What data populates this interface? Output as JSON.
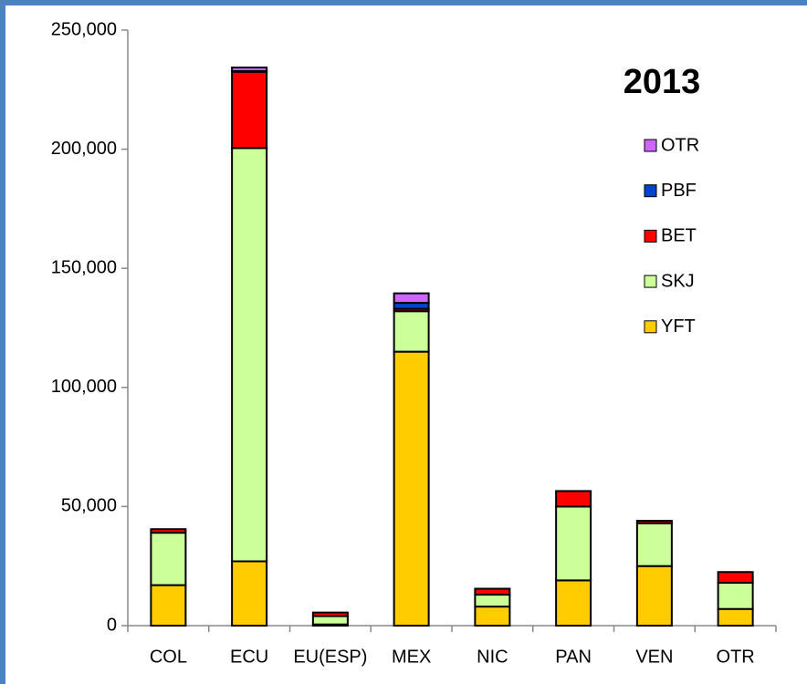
{
  "chart_data": {
    "type": "stacked_bar",
    "title": "2013",
    "categories": [
      "COL",
      "ECU",
      "EU(ESP)",
      "MEX",
      "NIC",
      "PAN",
      "VEN",
      "OTR"
    ],
    "series": [
      {
        "name": "YFT",
        "color": "#ffcc00",
        "values": [
          17000,
          27000,
          500,
          115000,
          8000,
          19000,
          25000,
          7000
        ]
      },
      {
        "name": "SKJ",
        "color": "#ccff99",
        "values": [
          22000,
          173500,
          3500,
          17000,
          5000,
          31000,
          18000,
          11000
        ]
      },
      {
        "name": "BET",
        "color": "#ff0000",
        "values": [
          1500,
          32000,
          1500,
          1000,
          2500,
          6500,
          1000,
          4500
        ]
      },
      {
        "name": "PBF",
        "color": "#0044cc",
        "values": [
          0,
          300,
          0,
          2500,
          0,
          0,
          0,
          0
        ]
      },
      {
        "name": "OTR",
        "color": "#cc66ff",
        "values": [
          0,
          1500,
          0,
          4000,
          0,
          0,
          0,
          0
        ]
      }
    ],
    "ylim": [
      0,
      250000
    ],
    "yticks": [
      0,
      {
        "value": 50000,
        "label": "50,000"
      },
      {
        "value": 100000,
        "label": "100,000"
      },
      {
        "value": 150000,
        "label": "150,000"
      },
      {
        "value": 200000,
        "label": "200,000"
      },
      {
        "value": 250000,
        "label": "250,000"
      }
    ],
    "legend": "upper right"
  }
}
